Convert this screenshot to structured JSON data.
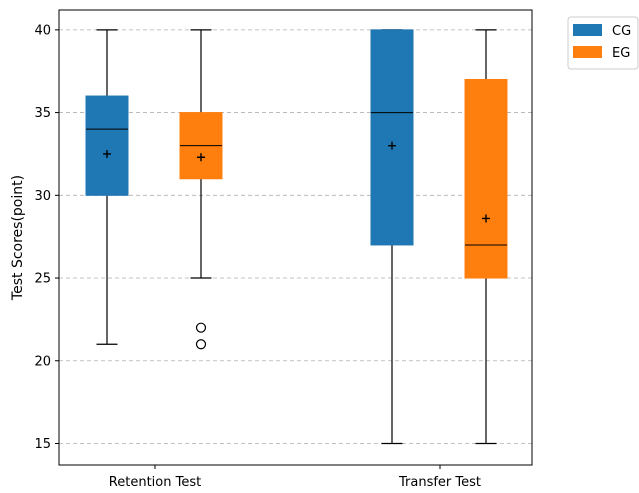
{
  "chart_data": {
    "type": "boxplot",
    "categories": [
      "Retention Test",
      "Transfer Test"
    ],
    "ylabel": "Test Scores(point)",
    "xlabel": "",
    "ylim": [
      13.7,
      41.2
    ],
    "yticks": [
      15,
      20,
      25,
      30,
      35,
      40
    ],
    "grid": "horizontal-dashed",
    "legend_position": "outside-top-right",
    "series": [
      {
        "name": "CG",
        "color": "#1f77b4",
        "boxes": [
          {
            "whisker_low": 21,
            "q1": 30,
            "median": 34,
            "q3": 36,
            "whisker_high": 40,
            "mean": 32.5,
            "outliers": []
          },
          {
            "whisker_low": 15,
            "q1": 27,
            "median": 35,
            "q3": 40,
            "whisker_high": 40,
            "mean": 33.0,
            "outliers": []
          }
        ]
      },
      {
        "name": "EG",
        "color": "#ff7f0e",
        "boxes": [
          {
            "whisker_low": 25,
            "q1": 31,
            "median": 33,
            "q3": 35,
            "whisker_high": 40,
            "mean": 32.3,
            "outliers": [
              22,
              21
            ]
          },
          {
            "whisker_low": 15,
            "q1": 25,
            "median": 27,
            "q3": 37,
            "whisker_high": 40,
            "mean": 28.6,
            "outliers": []
          }
        ]
      }
    ]
  }
}
